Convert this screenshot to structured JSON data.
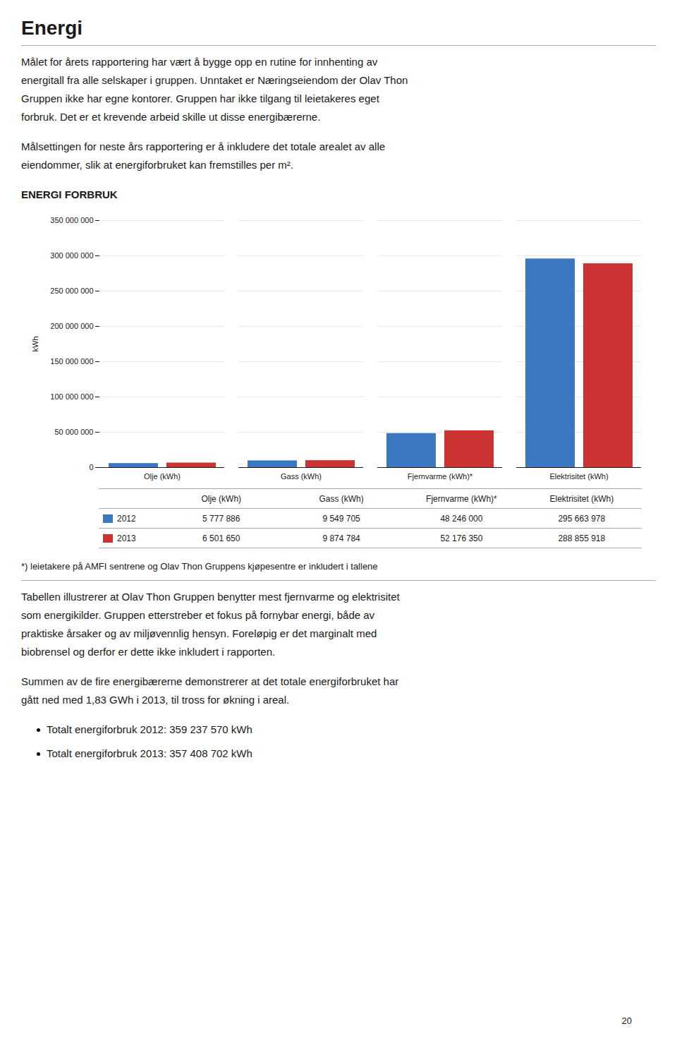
{
  "title": "Energi",
  "intro": [
    [
      "Målet for årets rapportering har vært å bygge opp en rutine for innhenting av",
      "energitall fra alle selskaper i gruppen. Unntaket er Næringseiendom der Olav Thon",
      "Gruppen ikke har egne kontorer. Gruppen har ikke tilgang til leietakeres eget",
      "forbruk. Det er et krevende arbeid skille ut disse energibærerne."
    ],
    [
      "Målsettingen for neste års rapportering er å inkludere det totale arealet av alle",
      "eiendommer, slik at energiforbruket kan fremstilles per m²."
    ]
  ],
  "chart_data": {
    "type": "bar",
    "title": "ENERGI FORBRUK",
    "categories": [
      "Olje (kWh)",
      "Gass (kWh)",
      "Fjernvarme (kWh)*",
      "Elektrisitet (kWh)"
    ],
    "series": [
      {
        "name": "2012",
        "color": "#3B78BF",
        "values": [
          5777886,
          9549705,
          48246000,
          295663978
        ],
        "value_labels": [
          "5 777 886",
          "9 549 705",
          "48 246 000",
          "295 663 978"
        ]
      },
      {
        "name": "2013",
        "color": "#CC3333",
        "values": [
          6501650,
          9874784,
          52176350,
          288855918
        ],
        "value_labels": [
          "6 501 650",
          "9 874 784",
          "52 176 350",
          "288 855 918"
        ]
      }
    ],
    "ylabel": "kWh",
    "ylim": [
      0,
      350000000
    ],
    "yticks": [
      0,
      {
        "value": 50000000,
        "label": "50 000 000"
      },
      {
        "value": 100000000,
        "label": "100 000 000"
      },
      {
        "value": 150000000,
        "label": "150 000 000"
      },
      {
        "value": 200000000,
        "label": "200 000 000"
      },
      {
        "value": 250000000,
        "label": "250 000 000"
      },
      {
        "value": 300000000,
        "label": "300 000 000"
      },
      {
        "value": 350000000,
        "label": "350 000 000"
      }
    ],
    "grid": true,
    "footnote": "*) leietakere på AMFI sentrene og Olav Thon Gruppens kjøpesentre er inkludert i tallene"
  },
  "outro": [
    [
      "Tabellen illustrerer at Olav Thon Gruppen benytter mest fjernvarme og elektrisitet",
      "som energikilder. Gruppen etterstreber et fokus på fornybar energi, både av",
      "praktiske årsaker og av miljøvennlig hensyn. Foreløpig er det marginalt med",
      "biobrensel og derfor er dette ikke inkludert i rapporten."
    ],
    [
      "Summen av de fire energibærerne demonstrerer at det totale energiforbruket har",
      "gått ned med 1,83 GWh i 2013, til tross for økning i areal."
    ]
  ],
  "bullets": [
    "Totalt energiforbruk 2012: 359 237 570 kWh",
    "Totalt energiforbruk 2013: 357 408 702 kWh"
  ],
  "page_number": "20"
}
